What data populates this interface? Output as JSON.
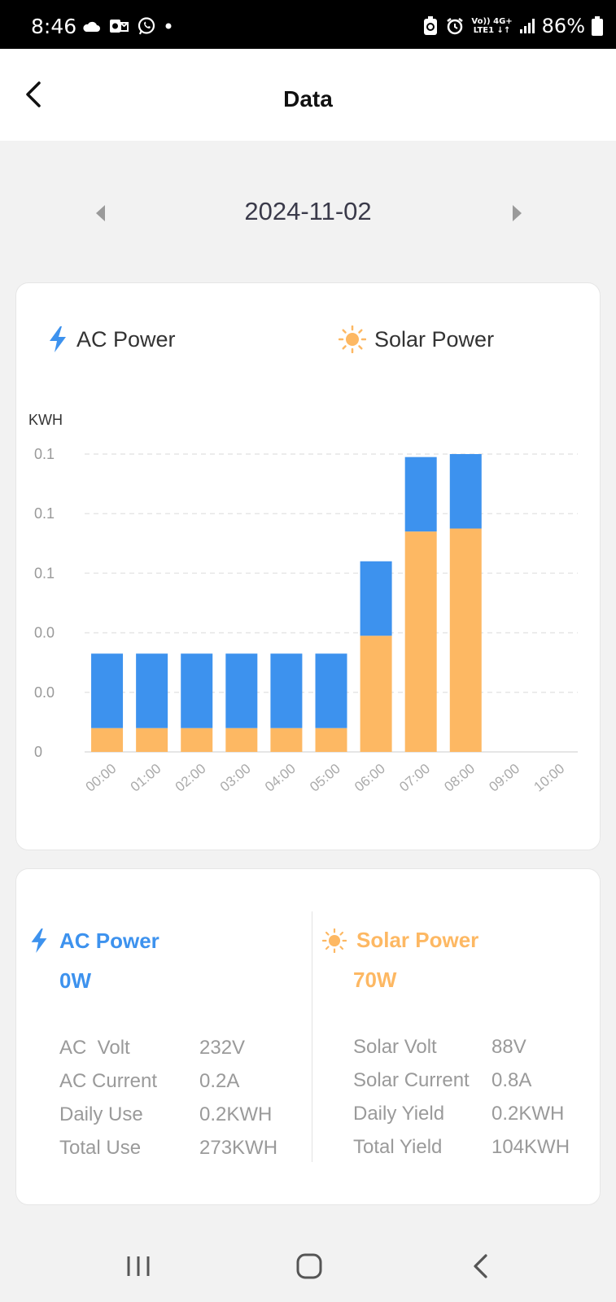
{
  "status_bar": {
    "time": "8:46",
    "battery": "86%",
    "network_top": "Vo)) 4G+",
    "network_bottom": "LTE1 ↓↑",
    "icons": [
      "cloud-icon",
      "outlook-icon",
      "whatsapp-icon",
      "dot-icon",
      "battery-saver-icon",
      "alarm-icon",
      "signal-icon",
      "battery-icon"
    ]
  },
  "header": {
    "title": "Data",
    "back_icon": "chevron-left-icon"
  },
  "date_nav": {
    "date": "2024-11-02",
    "prev_icon": "triangle-left-icon",
    "next_icon": "triangle-right-icon"
  },
  "chart_data": {
    "type": "bar",
    "stacked": true,
    "legend": [
      "AC Power",
      "Solar Power"
    ],
    "ylabel": "KWH",
    "y_tick_labels": [
      "0",
      "0.0",
      "0.0",
      "0.1",
      "0.1",
      "0.1"
    ],
    "ylim": [
      0,
      0.1
    ],
    "grid": true,
    "categories": [
      "00:00",
      "01:00",
      "02:00",
      "03:00",
      "04:00",
      "05:00",
      "06:00",
      "07:00",
      "08:00",
      "09:00",
      "10:00"
    ],
    "series": [
      {
        "name": "Solar Power",
        "color": "#FDB863",
        "values": [
          0.008,
          0.008,
          0.008,
          0.008,
          0.008,
          0.008,
          0.039,
          0.074,
          0.075,
          0,
          0
        ]
      },
      {
        "name": "AC Power",
        "color": "#3D92EE",
        "values": [
          0.025,
          0.025,
          0.025,
          0.025,
          0.025,
          0.025,
          0.025,
          0.025,
          0.025,
          0,
          0
        ]
      }
    ]
  },
  "info": {
    "ac": {
      "title": "AC Power",
      "value": "0W",
      "color": "#3D92EE",
      "rows": [
        {
          "label": "AC  Volt",
          "value": "232V"
        },
        {
          "label": "AC Current",
          "value": "0.2A"
        },
        {
          "label": "Daily Use",
          "value": "0.2KWH"
        },
        {
          "label": "Total Use",
          "value": "273KWH"
        }
      ]
    },
    "solar": {
      "title": "Solar Power",
      "value": "70W",
      "color": "#FDB863",
      "rows": [
        {
          "label": "Solar Volt",
          "value": "88V"
        },
        {
          "label": "Solar Current",
          "value": "0.8A"
        },
        {
          "label": "Daily Yield",
          "value": "0.2KWH"
        },
        {
          "label": "Total Yield",
          "value": "104KWH"
        }
      ]
    }
  },
  "nav_bar": {
    "icons": [
      "recent-apps-icon",
      "home-icon",
      "back-icon"
    ]
  }
}
